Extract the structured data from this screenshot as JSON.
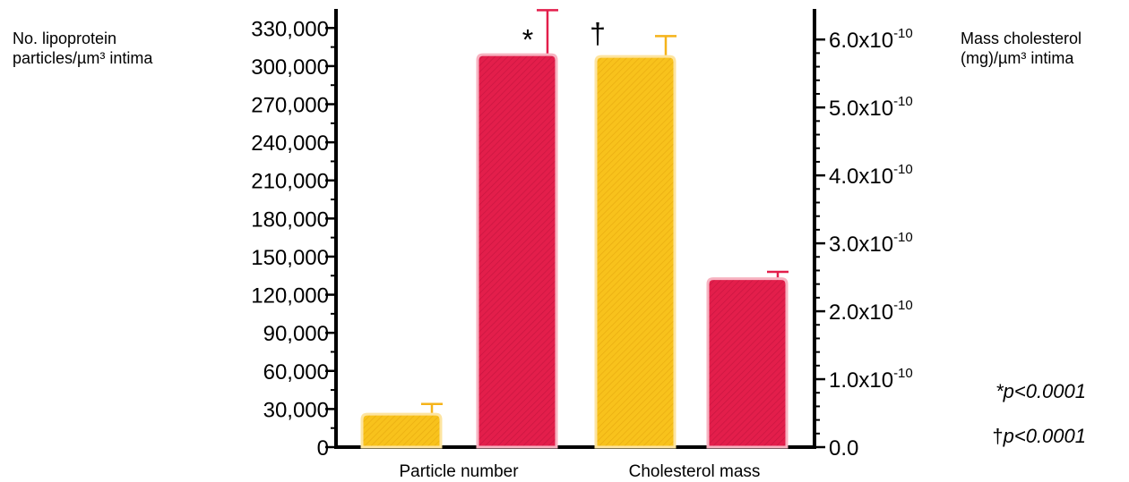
{
  "chart_data": {
    "type": "bar",
    "categories": [
      "Particle number",
      "Cholesterol mass"
    ],
    "left_axis": {
      "label_lines": [
        "No. lipoprotein",
        "particles/µm³ intima"
      ],
      "ylim": [
        0,
        345000
      ],
      "ticks": [
        "0",
        "30,000",
        "60,000",
        "90,000",
        "120,000",
        "150,000",
        "180,000",
        "210,000",
        "240,000",
        "270,000",
        "300,000",
        "330,000"
      ],
      "tick_values": [
        0,
        30000,
        60000,
        90000,
        120000,
        150000,
        180000,
        210000,
        240000,
        270000,
        300000,
        330000
      ]
    },
    "right_axis": {
      "label_lines": [
        "Mass cholesterol",
        "(mg)/µm³ intima"
      ],
      "ylim": [
        0,
        6.45e-10
      ],
      "ticks": [
        {
          "mantissa": "0.0",
          "exp": ""
        },
        {
          "mantissa": "1.0x10",
          "exp": "-10"
        },
        {
          "mantissa": "2.0x10",
          "exp": "-10"
        },
        {
          "mantissa": "3.0x10",
          "exp": "-10"
        },
        {
          "mantissa": "4.0x10",
          "exp": "-10"
        },
        {
          "mantissa": "5.0x10",
          "exp": "-10"
        },
        {
          "mantissa": "6.0x10",
          "exp": "-10"
        }
      ],
      "tick_values": [
        0,
        1e-10,
        2e-10,
        3e-10,
        4e-10,
        5e-10,
        6e-10
      ]
    },
    "bars": [
      {
        "category": "Particle number",
        "color": "#f8c21c",
        "axis": "left",
        "value": 26000,
        "error_upper": 34000,
        "marker": ""
      },
      {
        "category": "Particle number",
        "color": "#e31e4b",
        "axis": "left",
        "value": 309000,
        "error_upper": 344000,
        "marker": "*"
      },
      {
        "category": "Cholesterol mass",
        "color": "#f8c21c",
        "axis": "right",
        "value": 5.75e-10,
        "error_upper": 6.05e-10,
        "marker": "†"
      },
      {
        "category": "Cholesterol mass",
        "color": "#e31e4b",
        "axis": "right",
        "value": 2.48e-10,
        "error_upper": 2.58e-10,
        "marker": ""
      }
    ],
    "annotations": [
      {
        "prefix": "*",
        "text": "p<0.0001"
      },
      {
        "prefix": "†",
        "text": "p<0.0001"
      }
    ],
    "grid": false,
    "legend": "none"
  }
}
